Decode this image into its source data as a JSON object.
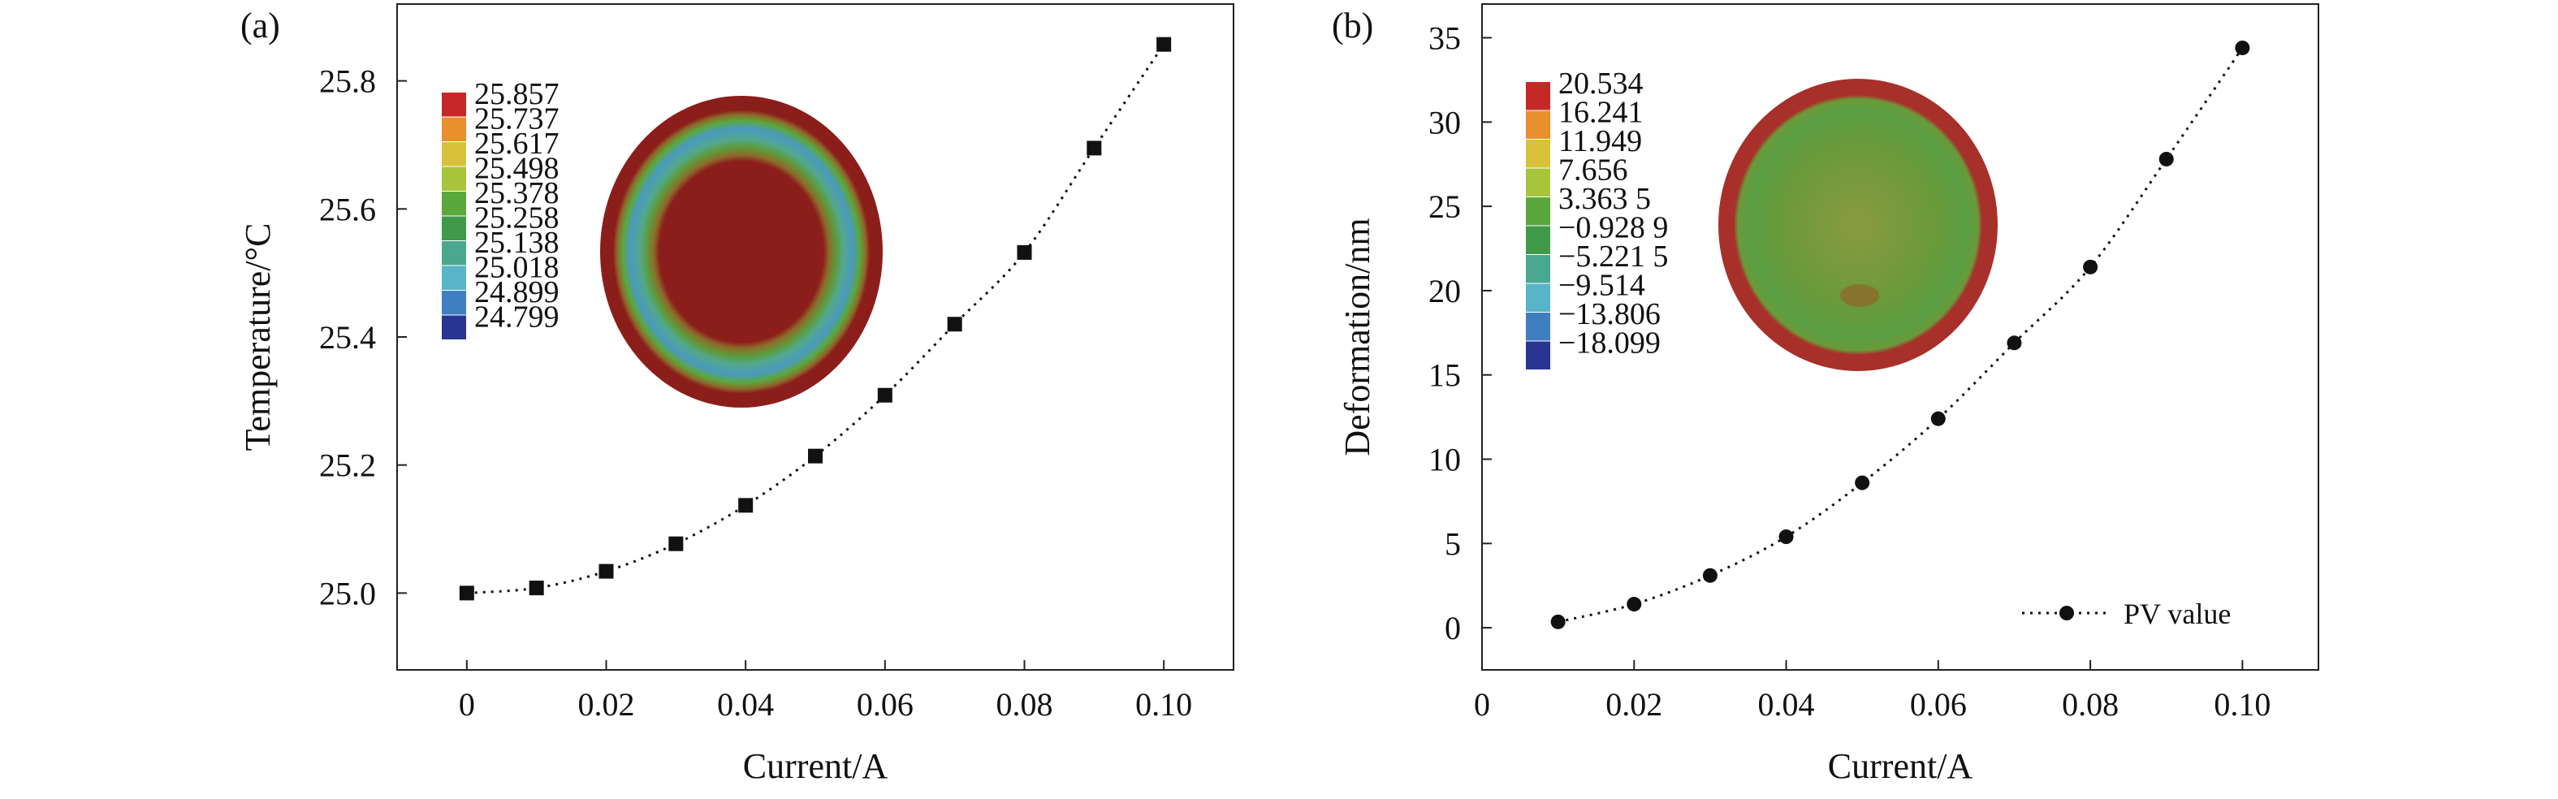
{
  "chart_data": [
    {
      "panel_label": "(a)",
      "type": "scatter",
      "line_style": "dotted",
      "marker": "square",
      "xlabel": "Current/A",
      "ylabel": "Temperature/°C",
      "xlim": [
        -0.01,
        0.11
      ],
      "ylim": [
        24.88,
        25.92
      ],
      "xticks": [
        0,
        0.02,
        0.04,
        0.06,
        0.08,
        0.1
      ],
      "xtick_labels": [
        "0",
        "0.02",
        "0.04",
        "0.06",
        "0.08",
        "0.10"
      ],
      "yticks": [
        25.0,
        25.2,
        25.4,
        25.6,
        25.8
      ],
      "ytick_labels": [
        "25.0",
        "25.2",
        "25.4",
        "25.6",
        "25.8"
      ],
      "x": [
        0,
        0.01,
        0.02,
        0.03,
        0.04,
        0.05,
        0.06,
        0.07,
        0.08,
        0.09,
        0.1
      ],
      "y": [
        25.0,
        25.008,
        25.034,
        25.077,
        25.137,
        25.214,
        25.309,
        25.42,
        25.532,
        25.695,
        25.857
      ],
      "colorbar": {
        "labels": [
          "25.857",
          "25.737",
          "25.617",
          "25.498",
          "25.378",
          "25.258",
          "25.138",
          "25.018",
          "24.899",
          "24.799"
        ],
        "colors": [
          "#c62828",
          "#e8902e",
          "#d8c23a",
          "#a8c43a",
          "#5aa83c",
          "#3f9a4a",
          "#4aa88e",
          "#58b4c8",
          "#3f7fc0",
          "#283593"
        ]
      },
      "inset": {
        "type": "contour",
        "colors": [
          "#8b1e1a",
          "#8d6a2a",
          "#5e9a3a",
          "#52a88a",
          "#4a9ac0"
        ]
      }
    },
    {
      "panel_label": "(b)",
      "type": "scatter",
      "line_style": "dotted",
      "marker": "circle",
      "xlabel": "Current/A",
      "ylabel": "Deformation/nm",
      "xlim": [
        0,
        0.11
      ],
      "ylim": [
        -2.5,
        37
      ],
      "xticks": [
        0,
        0.02,
        0.04,
        0.06,
        0.08,
        0.1
      ],
      "xtick_labels": [
        "0",
        "0.02",
        "0.04",
        "0.06",
        "0.08",
        "0.10"
      ],
      "yticks": [
        0,
        5,
        10,
        15,
        20,
        25,
        30,
        35
      ],
      "ytick_labels": [
        "0",
        "5",
        "10",
        "15",
        "20",
        "25",
        "30",
        "35"
      ],
      "legend": {
        "position": "bottom-right",
        "label": "PV value"
      },
      "x": [
        0.01,
        0.02,
        0.03,
        0.04,
        0.05,
        0.06,
        0.07,
        0.08,
        0.09,
        0.1
      ],
      "y": [
        0.35,
        1.4,
        3.1,
        5.4,
        8.6,
        12.4,
        16.9,
        21.4,
        27.8,
        34.4
      ],
      "colorbar": {
        "labels": [
          "20.534",
          "16.241",
          "11.949",
          "7.656",
          "3.363 5",
          "−0.928 9",
          "−5.221 5",
          "−9.514",
          "−13.806",
          "−18.099"
        ],
        "colors": [
          "#c62828",
          "#e8902e",
          "#d8c23a",
          "#a8c43a",
          "#5aa83c",
          "#3f9a4a",
          "#4aa88e",
          "#58b4c8",
          "#3f7fc0",
          "#283593"
        ]
      },
      "inset": {
        "type": "contour",
        "colors": [
          "#a8302a",
          "#6a9a3a",
          "#8a9a40",
          "#3f7fc0"
        ]
      }
    }
  ]
}
